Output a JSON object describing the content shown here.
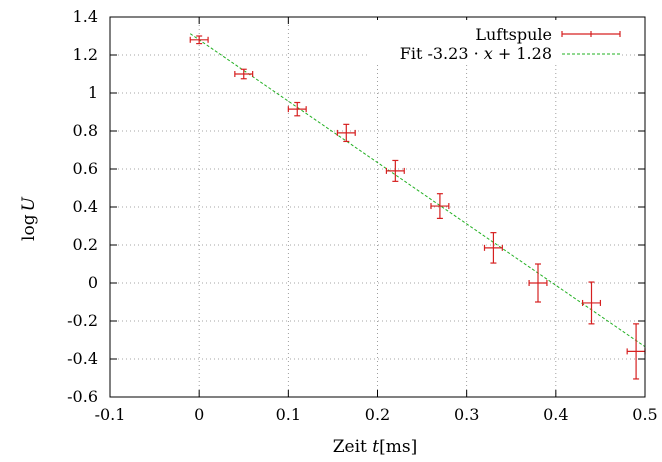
{
  "chart_data": {
    "type": "scatter",
    "xlabel_prefix": "Zeit ",
    "xlabel_var": "t",
    "xlabel_unit": "[ms]",
    "ylabel_prefix": "log",
    "ylabel_var": "U",
    "xlim": [
      -0.1,
      0.5
    ],
    "ylim": [
      -0.6,
      1.4
    ],
    "xticks": [
      -0.1,
      0,
      0.1,
      0.2,
      0.3,
      0.4,
      0.5
    ],
    "xtick_labels": [
      "-0.1",
      "0",
      "0.1",
      "0.2",
      "0.3",
      "0.4",
      "0.5"
    ],
    "yticks": [
      -0.6,
      -0.4,
      -0.2,
      0,
      0.2,
      0.4,
      0.6,
      0.8,
      1,
      1.2,
      1.4
    ],
    "ytick_labels": [
      "-0.6",
      "-0.4",
      "-0.2",
      "0",
      "0.2",
      "0.4",
      "0.6",
      "0.8",
      "1",
      "1.2",
      "1.4"
    ],
    "grid": true,
    "legend_position": "top-right",
    "series": [
      {
        "name": "Luftspule",
        "kind": "errorbars",
        "color": "#d62020",
        "points": [
          {
            "x": 0.0,
            "y": 1.28,
            "xerr": 0.01,
            "yerr": 0.02
          },
          {
            "x": 0.05,
            "y": 1.1,
            "xerr": 0.01,
            "yerr": 0.025
          },
          {
            "x": 0.11,
            "y": 0.915,
            "xerr": 0.01,
            "yerr": 0.035
          },
          {
            "x": 0.165,
            "y": 0.79,
            "xerr": 0.01,
            "yerr": 0.045
          },
          {
            "x": 0.22,
            "y": 0.59,
            "xerr": 0.01,
            "yerr": 0.055
          },
          {
            "x": 0.27,
            "y": 0.405,
            "xerr": 0.01,
            "yerr": 0.065
          },
          {
            "x": 0.33,
            "y": 0.185,
            "xerr": 0.01,
            "yerr": 0.08
          },
          {
            "x": 0.38,
            "y": 0.0,
            "xerr": 0.01,
            "yerr": 0.1
          },
          {
            "x": 0.44,
            "y": -0.105,
            "xerr": 0.01,
            "yerr": 0.11
          },
          {
            "x": 0.49,
            "y": -0.36,
            "xerr": 0.01,
            "yerr": 0.145
          }
        ]
      },
      {
        "name_prefix": "Fit -3.23 · ",
        "name_var": "x",
        "name_suffix": " + 1.28",
        "kind": "line",
        "color": "#22b022",
        "dash": "dashed",
        "slope": -3.23,
        "intercept": 1.28,
        "x_range": [
          -0.01,
          0.5
        ]
      }
    ]
  }
}
